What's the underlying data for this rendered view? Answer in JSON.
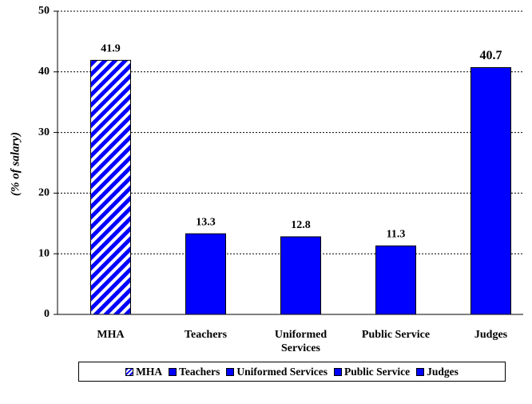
{
  "chart_data": {
    "type": "bar",
    "y_label": "(% of salary)",
    "categories": [
      "MHA",
      "Teachers",
      "Uniformed Services",
      "Public Service",
      "Judges"
    ],
    "values": [
      41.9,
      13.3,
      12.8,
      11.3,
      40.7
    ],
    "colors": [
      "#0000ff",
      "#0000ff",
      "#0000ff",
      "#0000ff",
      "#0000ff"
    ],
    "hatched": [
      true,
      false,
      false,
      false,
      false
    ],
    "ylim": [
      0,
      50
    ],
    "yticks": [
      0,
      10,
      20,
      30,
      40,
      50
    ],
    "grid": true,
    "legend": "bottom"
  }
}
